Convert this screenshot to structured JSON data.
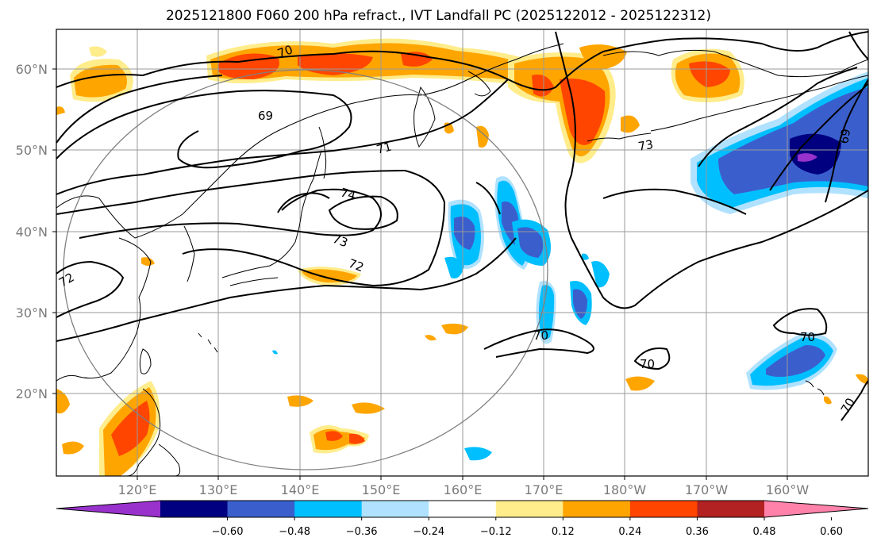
{
  "title": "2025121800 F060 200 hPa refract., IVT Landfall PC (2025122012 - 2025122312)",
  "lat_labels": [
    "60°N",
    "50°N",
    "40°N",
    "30°N",
    "20°N"
  ],
  "lon_labels": [
    "120°E",
    "130°E",
    "140°E",
    "150°E",
    "160°E",
    "170°E",
    "180°W",
    "170°W",
    "160°W"
  ],
  "contour_labels": [
    "70",
    "69",
    "71",
    "74",
    "73",
    "72",
    "73",
    "72",
    "70",
    "70",
    "70",
    "69",
    "70"
  ],
  "colorbar": {
    "ticks": [
      "−0.60",
      "−0.48",
      "−0.36",
      "−0.24",
      "−0.12",
      "0.12",
      "0.24",
      "0.36",
      "0.48",
      "0.60"
    ],
    "colors": [
      "#9932cc",
      "#000080",
      "#3a5fcd",
      "#00bfff",
      "#b0e2ff",
      "#ffffff",
      "#ffec8b",
      "#ffa500",
      "#ff4500",
      "#b22222",
      "#ff82ab"
    ]
  },
  "colors": {
    "pos_low": "#ffec8b",
    "pos_mid": "#ffa500",
    "pos_high": "#ff4500",
    "neg_low": "#b0e2ff",
    "neg_mid": "#00bfff",
    "neg_high": "#3a5fcd",
    "neg_max": "#000080",
    "neg_extreme": "#9932cc"
  }
}
